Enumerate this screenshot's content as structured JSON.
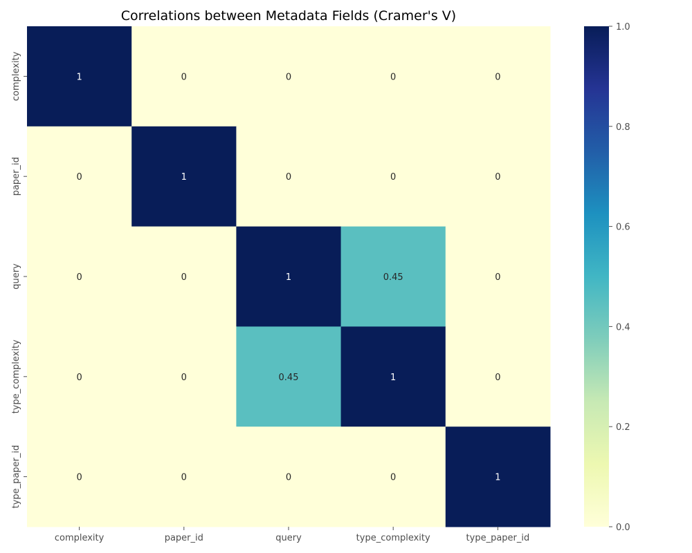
{
  "chart_data": {
    "type": "heatmap",
    "title": "Correlations between Metadata Fields (Cramer's V)",
    "xlabel": "",
    "ylabel": "",
    "x_categories": [
      "complexity",
      "paper_id",
      "query",
      "type_complexity",
      "type_paper_id"
    ],
    "y_categories": [
      "complexity",
      "paper_id",
      "query",
      "type_complexity",
      "type_paper_id"
    ],
    "values": [
      [
        1,
        0,
        0,
        0,
        0
      ],
      [
        0,
        1,
        0,
        0,
        0
      ],
      [
        0,
        0,
        1,
        0.45,
        0
      ],
      [
        0,
        0,
        0.45,
        1,
        0
      ],
      [
        0,
        0,
        0,
        0,
        1
      ]
    ],
    "cell_labels": [
      [
        "1",
        "0",
        "0",
        "0",
        "0"
      ],
      [
        "0",
        "1",
        "0",
        "0",
        "0"
      ],
      [
        "0",
        "0",
        "1",
        "0.45",
        "0"
      ],
      [
        "0",
        "0",
        "0.45",
        "1",
        "0"
      ],
      [
        "0",
        "0",
        "0",
        "0",
        "1"
      ]
    ],
    "colormap": "YlGnBu",
    "colorbar": {
      "range": [
        0.0,
        1.0
      ],
      "ticks": [
        0.0,
        0.2,
        0.4,
        0.6,
        0.8,
        1.0
      ],
      "tick_labels": [
        "0.0",
        "0.2",
        "0.4",
        "0.6",
        "0.8",
        "1.0"
      ]
    },
    "colors": {
      "low": "#ffffd9",
      "mid": "#56c0c0",
      "high": "#081d58"
    }
  }
}
